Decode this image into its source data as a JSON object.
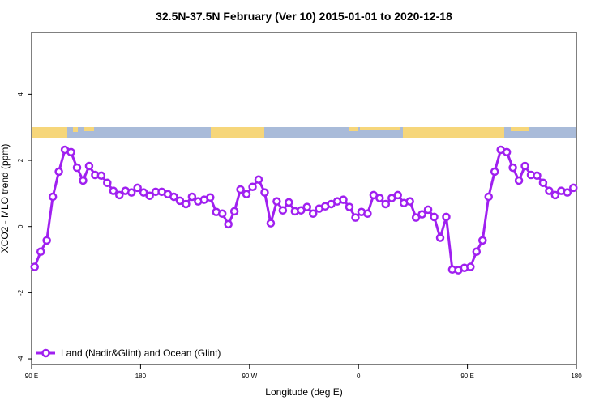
{
  "chart_data": {
    "type": "line",
    "title": "32.5N-37.5N February (Ver 10)   2015-01-01 to 2020-12-18",
    "x_label": "Longitude (deg E)",
    "y_label": "XCO2 - MLO trend (ppm)",
    "xlim": [
      90,
      540
    ],
    "xticks": [
      {
        "value": 90,
        "label": "90 E"
      },
      180,
      {
        "value": 270,
        "label": "90 W"
      },
      {
        "value": 360,
        "label": "0"
      },
      {
        "value": 450,
        "label": "90 E"
      },
      {
        "value": 540,
        "label": "180"
      }
    ],
    "ylim": [
      -4.17,
      5.87
    ],
    "yticks": [
      -4,
      -2,
      0,
      2,
      4
    ],
    "legend": "bottom-left",
    "x": [
      92.5,
      97.5,
      102.5,
      107.5,
      112.5,
      117.5,
      122.5,
      127.5,
      132.5,
      137.5,
      142.5,
      147.5,
      152.5,
      157.5,
      162.5,
      167.5,
      172.5,
      177.5,
      182.5,
      187.5,
      192.5,
      197.5,
      202.5,
      207.5,
      212.5,
      217.5,
      222.5,
      227.5,
      232.5,
      237.5,
      242.5,
      247.5,
      252.5,
      257.5,
      262.5,
      267.5,
      272.5,
      277.5,
      282.5,
      287.5,
      292.5,
      297.5,
      302.5,
      307.5,
      312.5,
      317.5,
      322.5,
      327.5,
      332.5,
      337.5,
      342.5,
      347.5,
      352.5,
      357.5,
      362.5,
      367.5,
      372.5,
      377.5,
      382.5,
      387.5,
      392.5,
      397.5,
      402.5,
      407.5,
      412.5,
      417.5,
      422.5,
      427.5,
      432.5,
      437.5,
      442.5,
      447.5,
      452.5,
      457.5,
      462.5,
      467.5,
      472.5,
      477.5,
      482.5,
      487.5,
      492.5,
      497.5,
      502.5,
      507.5,
      512.5,
      517.5,
      522.5,
      527.5,
      532.5,
      537.5
    ],
    "series": [
      {
        "name": "Land (Nadir&Glint) and Ocean (Glint)",
        "color": "#a020f0",
        "values": [
          -1.22,
          -0.76,
          -0.42,
          0.9,
          1.66,
          2.32,
          2.25,
          1.78,
          1.39,
          1.83,
          1.56,
          1.54,
          1.32,
          1.08,
          0.95,
          1.08,
          1.03,
          1.17,
          1.03,
          0.93,
          1.05,
          1.05,
          0.98,
          0.9,
          0.78,
          0.68,
          0.9,
          0.76,
          0.81,
          0.88,
          0.44,
          0.39,
          0.07,
          0.46,
          1.12,
          0.98,
          1.2,
          1.42,
          1.03,
          0.1,
          0.76,
          0.49,
          0.73,
          0.46,
          0.49,
          0.59,
          0.39,
          0.54,
          0.61,
          0.68,
          0.76,
          0.81,
          0.59,
          0.27,
          0.44,
          0.39,
          0.95,
          0.86,
          0.68,
          0.86,
          0.95,
          0.71,
          0.76,
          0.27,
          0.37,
          0.51,
          0.29,
          -0.34,
          0.29,
          -1.3,
          -1.32,
          -1.25,
          -1.22,
          -0.76,
          -0.42,
          0.9,
          1.66,
          2.32,
          2.25,
          1.78,
          1.39,
          1.83,
          1.56,
          1.54,
          1.32,
          1.08,
          0.95,
          1.08,
          1.03,
          1.17
        ]
      }
    ]
  }
}
